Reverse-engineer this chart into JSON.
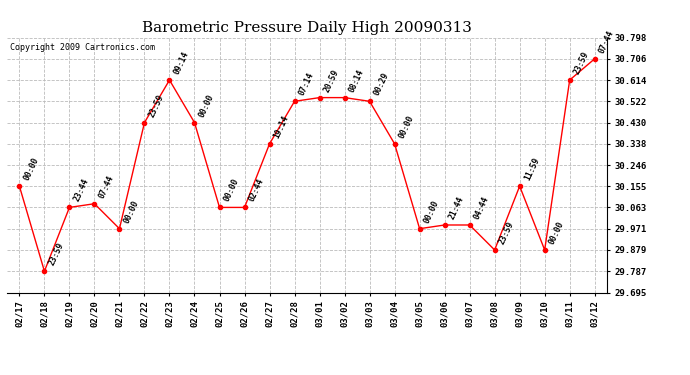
{
  "title": "Barometric Pressure Daily High 20090313",
  "copyright": "Copyright 2009 Cartronics.com",
  "x_labels": [
    "02/17",
    "02/18",
    "02/19",
    "02/20",
    "02/21",
    "02/22",
    "02/23",
    "02/24",
    "02/25",
    "02/26",
    "02/27",
    "02/28",
    "03/01",
    "03/02",
    "03/03",
    "03/04",
    "03/05",
    "03/06",
    "03/07",
    "03/08",
    "03/09",
    "03/10",
    "03/11",
    "03/12"
  ],
  "y_values": [
    30.155,
    29.787,
    30.063,
    30.079,
    29.971,
    30.43,
    30.614,
    30.43,
    30.063,
    30.063,
    30.338,
    30.522,
    30.538,
    30.538,
    30.522,
    30.338,
    29.971,
    29.987,
    29.987,
    29.879,
    30.155,
    29.879,
    30.614,
    30.706
  ],
  "point_labels": [
    "00:00",
    "23:59",
    "23:44",
    "07:44",
    "00:00",
    "23:59",
    "09:14",
    "00:00",
    "00:00",
    "02:44",
    "19:14",
    "07:14",
    "20:59",
    "08:14",
    "00:29",
    "00:00",
    "00:00",
    "21:44",
    "04:44",
    "23:59",
    "11:59",
    "00:00",
    "23:59",
    "07:44"
  ],
  "y_min": 29.695,
  "y_max": 30.798,
  "y_ticks": [
    29.695,
    29.787,
    29.879,
    29.971,
    30.063,
    30.155,
    30.246,
    30.338,
    30.43,
    30.522,
    30.614,
    30.706,
    30.798
  ],
  "line_color": "red",
  "marker_color": "red",
  "marker_size": 3,
  "grid_color": "#bbbbbb",
  "bg_color": "white",
  "title_fontsize": 11,
  "tick_fontsize": 6.5,
  "point_label_fontsize": 5.8,
  "copyright_fontsize": 6.0
}
